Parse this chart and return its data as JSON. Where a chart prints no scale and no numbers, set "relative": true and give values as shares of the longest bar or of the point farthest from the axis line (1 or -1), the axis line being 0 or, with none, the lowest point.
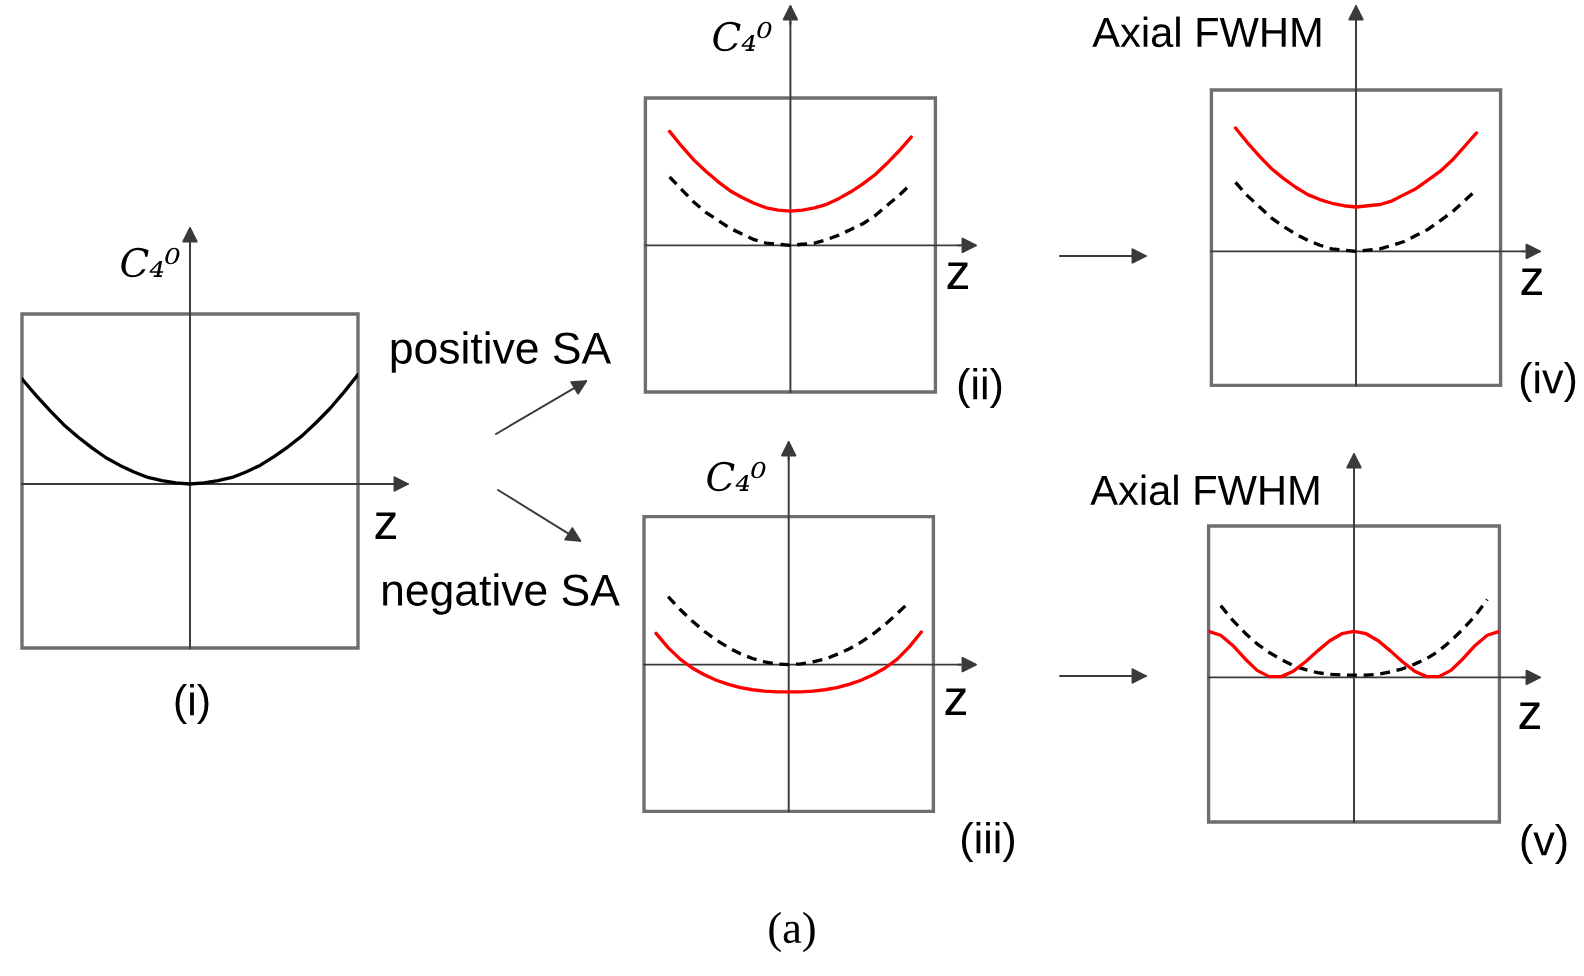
{
  "chart_data": [
    {
      "type": "line",
      "relative": true,
      "xlabel": "z",
      "ylabel": "C₄⁰",
      "annotations": [
        "(i)",
        "(a)"
      ],
      "categories": [
        null,
        null,
        null,
        null,
        null,
        null,
        null,
        null,
        null,
        null,
        null,
        null,
        null,
        null,
        null,
        null,
        null,
        null,
        null,
        null,
        null,
        null,
        null,
        null,
        null
      ],
      "series": [
        {
          "color": "#000000",
          "line_style": "solid",
          "values": [
            0.96,
            0.81,
            0.67,
            0.54,
            0.43,
            0.33,
            0.24,
            0.17,
            0.11,
            0.06,
            0.03,
            0.01,
            0,
            0.01,
            0.03,
            0.06,
            0.11,
            0.17,
            0.25,
            0.34,
            0.44,
            0.56,
            0.69,
            0.84,
            1.0
          ]
        }
      ]
    },
    {
      "type": "line",
      "relative": true,
      "xlabel": "z",
      "ylabel": "C₄⁰",
      "annotations": [
        "(ii)",
        "positive SA"
      ],
      "categories": [
        null,
        null,
        null,
        null,
        null,
        null,
        null,
        null,
        null,
        null,
        null,
        null,
        null,
        null,
        null,
        null,
        null,
        null,
        null,
        null,
        null,
        null,
        null,
        null,
        null
      ],
      "series": [
        {
          "color": "#000000",
          "line_style": "dashed",
          "values": [
            null,
            null,
            0.6,
            0.49,
            0.38,
            0.29,
            0.22,
            0.15,
            0.1,
            0.05,
            0.02,
            0.01,
            0,
            0.01,
            0.02,
            0.05,
            0.09,
            0.14,
            0.19,
            0.26,
            0.35,
            0.44,
            0.54,
            null,
            null
          ]
        },
        {
          "color": "#ff0000",
          "line_style": "solid",
          "values": [
            null,
            null,
            1.0,
            0.87,
            0.75,
            0.65,
            0.56,
            0.48,
            0.42,
            0.37,
            0.33,
            0.31,
            0.3,
            0.31,
            0.33,
            0.36,
            0.41,
            0.47,
            0.54,
            0.62,
            0.72,
            0.83,
            0.95,
            null,
            null
          ]
        }
      ]
    },
    {
      "type": "line",
      "relative": true,
      "xlabel": "z",
      "ylabel": "C₄⁰",
      "annotations": [
        "(iii)",
        "negative SA"
      ],
      "categories": [
        null,
        null,
        null,
        null,
        null,
        null,
        null,
        null,
        null,
        null,
        null,
        null,
        null,
        null,
        null,
        null,
        null,
        null,
        null,
        null,
        null,
        null,
        null,
        null,
        null
      ],
      "series": [
        {
          "color": "#000000",
          "line_style": "dashed",
          "values": [
            null,
            null,
            1.0,
            0.81,
            0.64,
            0.49,
            0.36,
            0.25,
            0.16,
            0.09,
            0.04,
            0.01,
            0,
            0.01,
            0.04,
            0.08,
            0.15,
            0.23,
            0.33,
            0.45,
            0.59,
            0.75,
            0.92,
            null,
            null
          ]
        },
        {
          "color": "#ff0000",
          "line_style": "solid",
          "values": [
            null,
            0.46,
            0.25,
            0.08,
            -0.05,
            -0.15,
            -0.23,
            -0.29,
            -0.34,
            -0.37,
            -0.39,
            -0.4,
            -0.4,
            -0.4,
            -0.39,
            -0.37,
            -0.34,
            -0.29,
            -0.23,
            -0.15,
            -0.05,
            0.08,
            0.26,
            0.48,
            null
          ]
        }
      ]
    },
    {
      "type": "line",
      "relative": true,
      "xlabel": "z",
      "ylabel": "Axial FWHM",
      "annotations": [
        "(iv)"
      ],
      "categories": [
        null,
        null,
        null,
        null,
        null,
        null,
        null,
        null,
        null,
        null,
        null,
        null,
        null,
        null,
        null,
        null,
        null,
        null,
        null,
        null,
        null,
        null,
        null,
        null,
        null
      ],
      "series": [
        {
          "color": "#000000",
          "line_style": "dashed",
          "values": [
            null,
            null,
            0.56,
            0.45,
            0.36,
            0.27,
            0.2,
            0.14,
            0.09,
            0.05,
            0.02,
            0.01,
            0,
            0.01,
            0.02,
            0.05,
            0.08,
            0.13,
            0.18,
            0.25,
            0.32,
            0.41,
            0.5,
            null,
            null
          ]
        },
        {
          "color": "#ff0000",
          "line_style": "solid",
          "values": [
            null,
            null,
            1.0,
            0.88,
            0.77,
            0.67,
            0.59,
            0.52,
            0.46,
            0.42,
            0.39,
            0.37,
            0.36,
            0.37,
            0.38,
            0.41,
            0.46,
            0.51,
            0.58,
            0.65,
            0.74,
            0.85,
            0.96,
            null,
            null
          ]
        }
      ]
    },
    {
      "type": "line",
      "relative": true,
      "xlabel": "z",
      "ylabel": "Axial FWHM",
      "annotations": [
        "(v)"
      ],
      "categories": [
        null,
        null,
        null,
        null,
        null,
        null,
        null,
        null,
        null,
        null,
        null,
        null,
        null,
        null,
        null,
        null,
        null,
        null,
        null,
        null,
        null,
        null,
        null,
        null,
        null
      ],
      "series": [
        {
          "color": "#000000",
          "line_style": "dashed",
          "values": [
            null,
            0.92,
            0.73,
            0.57,
            0.43,
            0.32,
            0.23,
            0.15,
            0.1,
            0.06,
            0.04,
            0.03,
            0.03,
            0.03,
            0.04,
            0.07,
            0.11,
            0.17,
            0.24,
            0.34,
            0.47,
            0.62,
            0.79,
            1.0,
            null
          ]
        },
        {
          "color": "#ff0000",
          "line_style": "solid",
          "values": [
            0.59,
            0.54,
            0.41,
            0.24,
            0.09,
            0.01,
            0.01,
            0.08,
            0.2,
            0.34,
            0.47,
            0.56,
            0.59,
            0.56,
            0.47,
            0.34,
            0.2,
            0.08,
            0.01,
            0.01,
            0.09,
            0.24,
            0.41,
            0.54,
            0.59
          ]
        }
      ]
    }
  ]
}
